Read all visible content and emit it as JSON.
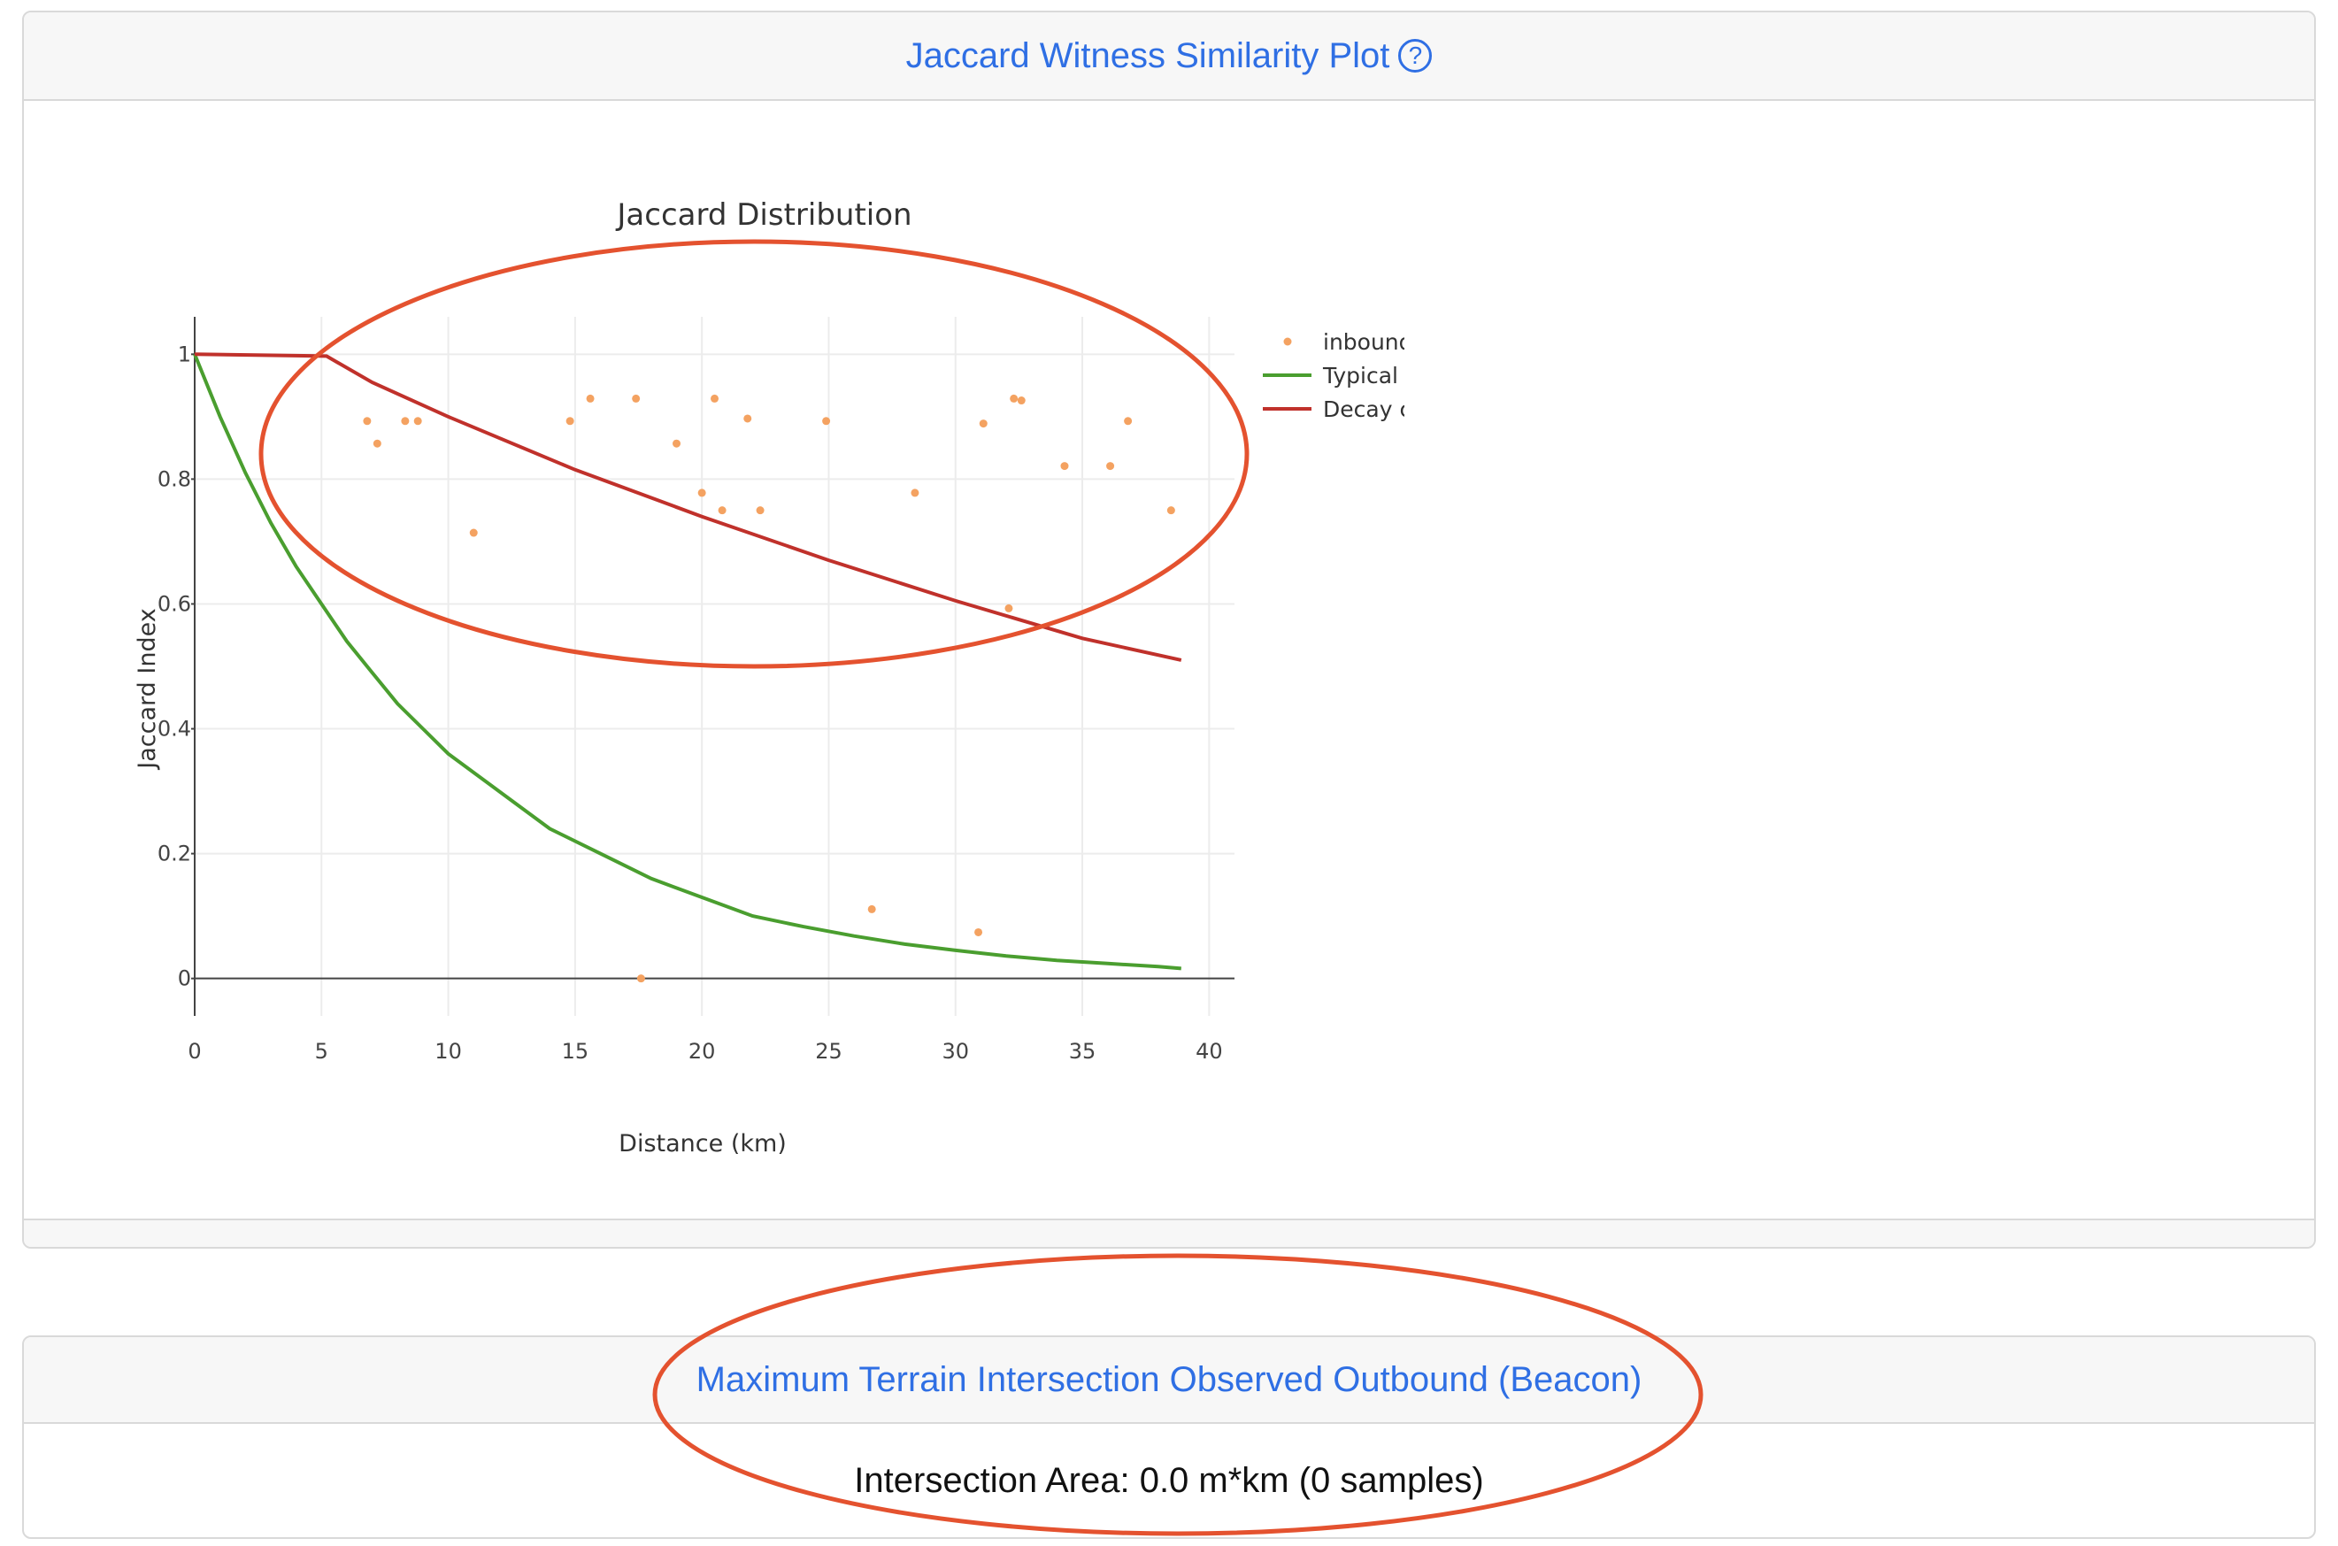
{
  "panel1": {
    "title": "Jaccard Witness Similarity Plot",
    "help_icon": "help-circle-icon",
    "help_glyph": "?"
  },
  "chart_data": {
    "type": "scatter",
    "title": "Jaccard Distribution",
    "xlabel": "Distance (km)",
    "ylabel": "Jaccard Index",
    "xlim": [
      0,
      41
    ],
    "ylim": [
      -0.06,
      1.06
    ],
    "x_ticks": [
      0,
      5,
      10,
      15,
      20,
      25,
      30,
      35,
      40
    ],
    "x_tick_labels": [
      "0",
      "5",
      "10",
      "15",
      "20",
      "25",
      "30",
      "35",
      "40"
    ],
    "y_ticks": [
      0,
      0.2,
      0.4,
      0.6,
      0.8,
      1
    ],
    "y_tick_labels": [
      "0",
      "0.2",
      "0.4",
      "0.6",
      "0.8",
      "1"
    ],
    "grid": true,
    "legend_position": "top-right",
    "colors": {
      "inbound": "#f4a261",
      "typical": "#4a9e2f",
      "decay": "#c0312b"
    },
    "series": [
      {
        "name": "inbound",
        "mode": "markers",
        "points": [
          [
            6.8,
            0.893
          ],
          [
            7.2,
            0.857
          ],
          [
            8.3,
            0.893
          ],
          [
            8.8,
            0.893
          ],
          [
            11.0,
            0.714
          ],
          [
            14.8,
            0.893
          ],
          [
            15.6,
            0.929
          ],
          [
            17.4,
            0.929
          ],
          [
            19.0,
            0.857
          ],
          [
            20.0,
            0.778
          ],
          [
            20.5,
            0.929
          ],
          [
            20.8,
            0.75
          ],
          [
            21.8,
            0.897
          ],
          [
            22.3,
            0.75
          ],
          [
            24.9,
            0.893
          ],
          [
            26.7,
            0.111
          ],
          [
            28.4,
            0.778
          ],
          [
            30.9,
            0.074
          ],
          [
            31.1,
            0.889
          ],
          [
            32.1,
            0.593
          ],
          [
            32.3,
            0.929
          ],
          [
            32.6,
            0.926
          ],
          [
            34.3,
            0.821
          ],
          [
            36.1,
            0.821
          ],
          [
            36.8,
            0.893
          ],
          [
            38.5,
            0.75
          ],
          [
            17.6,
            0.0
          ]
        ]
      },
      {
        "name": "Typical curve",
        "mode": "lines",
        "points": [
          [
            0,
            1.0
          ],
          [
            1,
            0.9
          ],
          [
            2,
            0.81
          ],
          [
            3,
            0.73
          ],
          [
            4,
            0.66
          ],
          [
            5,
            0.6
          ],
          [
            6,
            0.54
          ],
          [
            7,
            0.49
          ],
          [
            8,
            0.44
          ],
          [
            9,
            0.4
          ],
          [
            10,
            0.36
          ],
          [
            12,
            0.3
          ],
          [
            14,
            0.24
          ],
          [
            16,
            0.2
          ],
          [
            18,
            0.16
          ],
          [
            20,
            0.13
          ],
          [
            22,
            0.1
          ],
          [
            24,
            0.083
          ],
          [
            26,
            0.068
          ],
          [
            28,
            0.055
          ],
          [
            30,
            0.045
          ],
          [
            32,
            0.036
          ],
          [
            34,
            0.029
          ],
          [
            36,
            0.024
          ],
          [
            38,
            0.019
          ],
          [
            38.9,
            0.016
          ]
        ]
      },
      {
        "name": "Decay curve",
        "mode": "lines",
        "points": [
          [
            0,
            1.0
          ],
          [
            5.2,
            0.997
          ],
          [
            7,
            0.955
          ],
          [
            10,
            0.9
          ],
          [
            15,
            0.815
          ],
          [
            20,
            0.74
          ],
          [
            25,
            0.67
          ],
          [
            30,
            0.605
          ],
          [
            35,
            0.545
          ],
          [
            38.9,
            0.51
          ]
        ]
      }
    ]
  },
  "panel2": {
    "title": "Maximum Terrain Intersection Observed Outbound (Beacon)",
    "body": "Intersection Area: 0.0 m*km (0 samples)"
  },
  "annotations": {
    "color": "#e4522f"
  }
}
